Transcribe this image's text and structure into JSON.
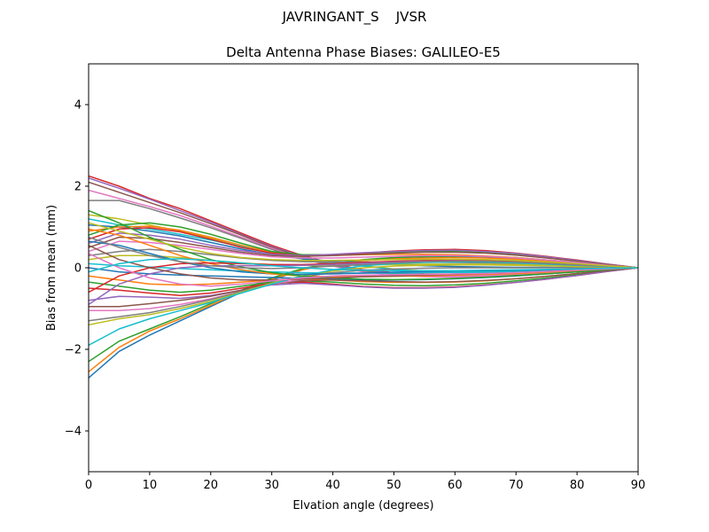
{
  "figure": {
    "suptitle": "JAVRINGANT_S    JVSR"
  },
  "chart_data": {
    "type": "line",
    "title": "Delta Antenna Phase Biases: GALILEO-E5",
    "xlabel": "Elvation angle (degrees)",
    "ylabel": "Bias from mean (mm)",
    "xlim": [
      0,
      90
    ],
    "ylim": [
      -5,
      5
    ],
    "xticks": [
      0,
      10,
      20,
      30,
      40,
      50,
      60,
      70,
      80,
      90
    ],
    "yticks": [
      -4,
      -2,
      0,
      2,
      4
    ],
    "xtick_labels": [
      "0",
      "10",
      "20",
      "30",
      "40",
      "50",
      "60",
      "70",
      "80",
      "90"
    ],
    "ytick_labels": [
      "−4",
      "−2",
      "0",
      "2",
      "4"
    ],
    "grid": false,
    "legend": "none",
    "palette": [
      "#1f77b4",
      "#ff7f0e",
      "#2ca02c",
      "#d62728",
      "#9467bd",
      "#8c564b",
      "#e377c2",
      "#7f7f7f",
      "#bcbd22",
      "#17becf"
    ],
    "x": [
      0,
      5,
      10,
      15,
      20,
      25,
      30,
      35,
      40,
      45,
      50,
      55,
      60,
      65,
      70,
      75,
      80,
      85,
      90
    ],
    "series": [
      {
        "values": [
          -2.7,
          -2.05,
          -1.65,
          -1.3,
          -0.95,
          -0.6,
          -0.3,
          -0.05,
          0.1,
          0.18,
          0.22,
          0.25,
          0.26,
          0.25,
          0.22,
          0.17,
          0.11,
          0.05,
          0.0
        ]
      },
      {
        "values": [
          -2.55,
          -1.95,
          -1.55,
          -1.25,
          -0.92,
          -0.58,
          -0.28,
          -0.05,
          0.1,
          0.18,
          0.22,
          0.24,
          0.25,
          0.24,
          0.21,
          0.16,
          0.11,
          0.05,
          0.0
        ]
      },
      {
        "values": [
          -2.3,
          -1.8,
          -1.5,
          -1.2,
          -0.88,
          -0.55,
          -0.25,
          -0.02,
          0.12,
          0.2,
          0.25,
          0.28,
          0.29,
          0.28,
          0.25,
          0.19,
          0.13,
          0.06,
          0.0
        ]
      },
      {
        "values": [
          2.25,
          2.0,
          1.7,
          1.45,
          1.15,
          0.85,
          0.55,
          0.3,
          0.1,
          -0.05,
          -0.12,
          -0.15,
          -0.16,
          -0.15,
          -0.13,
          -0.1,
          -0.07,
          -0.03,
          0.0
        ]
      },
      {
        "values": [
          2.2,
          1.95,
          1.68,
          1.4,
          1.12,
          0.82,
          0.52,
          0.28,
          0.08,
          -0.06,
          -0.13,
          -0.16,
          -0.17,
          -0.16,
          -0.14,
          -0.11,
          -0.07,
          -0.03,
          0.0
        ]
      },
      {
        "values": [
          2.1,
          1.85,
          1.6,
          1.35,
          1.08,
          0.8,
          0.5,
          0.25,
          0.06,
          -0.08,
          -0.15,
          -0.18,
          -0.19,
          -0.18,
          -0.15,
          -0.12,
          -0.08,
          -0.04,
          0.0
        ]
      },
      {
        "values": [
          1.9,
          1.7,
          1.5,
          1.28,
          1.02,
          0.75,
          0.48,
          0.22,
          0.04,
          -0.1,
          -0.18,
          -0.22,
          -0.23,
          -0.21,
          -0.18,
          -0.14,
          -0.09,
          -0.04,
          0.0
        ]
      },
      {
        "values": [
          1.65,
          1.65,
          1.45,
          1.22,
          0.98,
          0.72,
          0.45,
          0.22,
          0.06,
          -0.08,
          -0.15,
          -0.19,
          -0.2,
          -0.19,
          -0.16,
          -0.12,
          -0.08,
          -0.04,
          0.0
        ]
      },
      {
        "values": [
          1.3,
          1.2,
          1.05,
          0.9,
          0.72,
          0.55,
          0.38,
          0.24,
          0.14,
          0.05,
          -0.03,
          -0.08,
          -0.11,
          -0.12,
          -0.11,
          -0.09,
          -0.06,
          -0.03,
          0.0
        ]
      },
      {
        "values": [
          1.2,
          1.05,
          0.95,
          0.82,
          0.68,
          0.52,
          0.35,
          0.22,
          0.12,
          0.04,
          -0.04,
          -0.09,
          -0.12,
          -0.12,
          -0.11,
          -0.09,
          -0.06,
          -0.03,
          0.0
        ]
      },
      {
        "values": [
          1.05,
          1.0,
          0.9,
          0.78,
          0.62,
          0.46,
          0.32,
          0.22,
          0.16,
          0.12,
          0.08,
          0.05,
          0.03,
          0.02,
          0.01,
          0.01,
          0.0,
          0.0,
          0.0
        ]
      },
      {
        "values": [
          0.9,
          1.0,
          1.02,
          0.92,
          0.75,
          0.55,
          0.38,
          0.3,
          0.3,
          0.32,
          0.33,
          0.33,
          0.32,
          0.29,
          0.25,
          0.19,
          0.13,
          0.06,
          0.0
        ]
      },
      {
        "values": [
          0.8,
          1.05,
          1.1,
          1.0,
          0.82,
          0.6,
          0.4,
          0.32,
          0.32,
          0.35,
          0.38,
          0.4,
          0.4,
          0.37,
          0.32,
          0.25,
          0.17,
          0.08,
          0.0
        ]
      },
      {
        "values": [
          0.7,
          0.95,
          0.98,
          0.88,
          0.7,
          0.5,
          0.36,
          0.3,
          0.32,
          0.36,
          0.41,
          0.44,
          0.45,
          0.42,
          0.36,
          0.28,
          0.19,
          0.09,
          0.0
        ]
      },
      {
        "values": [
          0.6,
          0.85,
          0.8,
          0.7,
          0.55,
          0.42,
          0.33,
          0.3,
          0.33,
          0.37,
          0.4,
          0.42,
          0.43,
          0.4,
          0.35,
          0.27,
          0.18,
          0.09,
          0.0
        ]
      },
      {
        "values": [
          0.5,
          0.75,
          0.72,
          0.62,
          0.5,
          0.38,
          0.3,
          0.28,
          0.3,
          0.33,
          0.36,
          0.38,
          0.38,
          0.36,
          0.31,
          0.24,
          0.16,
          0.08,
          0.0
        ]
      },
      {
        "values": [
          0.4,
          0.65,
          0.62,
          0.55,
          0.45,
          0.35,
          0.27,
          0.24,
          0.24,
          0.26,
          0.28,
          0.3,
          0.3,
          0.28,
          0.24,
          0.19,
          0.13,
          0.06,
          0.0
        ]
      },
      {
        "values": [
          0.3,
          0.4,
          0.45,
          0.4,
          0.32,
          0.24,
          0.18,
          0.15,
          0.14,
          0.14,
          0.14,
          0.14,
          0.13,
          0.12,
          0.1,
          0.08,
          0.05,
          0.03,
          0.0
        ]
      },
      {
        "values": [
          0.2,
          0.3,
          0.3,
          0.25,
          0.18,
          0.12,
          0.08,
          0.06,
          0.06,
          0.07,
          0.08,
          0.09,
          0.09,
          0.09,
          0.08,
          0.06,
          0.04,
          0.02,
          0.0
        ]
      },
      {
        "values": [
          0.1,
          0.05,
          0.02,
          -0.02,
          -0.05,
          -0.08,
          -0.1,
          -0.12,
          -0.13,
          -0.13,
          -0.13,
          -0.12,
          -0.11,
          -0.1,
          -0.08,
          -0.06,
          -0.04,
          -0.02,
          0.0
        ]
      },
      {
        "values": [
          0.0,
          -0.1,
          -0.15,
          -0.18,
          -0.2,
          -0.22,
          -0.24,
          -0.26,
          -0.28,
          -0.3,
          -0.3,
          -0.29,
          -0.27,
          -0.24,
          -0.2,
          -0.15,
          -0.1,
          -0.05,
          0.0
        ]
      },
      {
        "values": [
          -0.2,
          -0.3,
          -0.4,
          -0.42,
          -0.4,
          -0.35,
          -0.3,
          -0.28,
          -0.3,
          -0.34,
          -0.36,
          -0.36,
          -0.35,
          -0.32,
          -0.27,
          -0.21,
          -0.14,
          -0.07,
          0.0
        ]
      },
      {
        "values": [
          -0.35,
          -0.45,
          -0.55,
          -0.6,
          -0.55,
          -0.45,
          -0.35,
          -0.32,
          -0.35,
          -0.4,
          -0.43,
          -0.44,
          -0.42,
          -0.38,
          -0.32,
          -0.25,
          -0.17,
          -0.08,
          0.0
        ]
      },
      {
        "values": [
          -0.5,
          -0.55,
          -0.62,
          -0.68,
          -0.62,
          -0.5,
          -0.38,
          -0.35,
          -0.4,
          -0.46,
          -0.49,
          -0.49,
          -0.47,
          -0.42,
          -0.36,
          -0.28,
          -0.19,
          -0.09,
          0.0
        ]
      },
      {
        "values": [
          -0.8,
          -0.7,
          -0.72,
          -0.75,
          -0.68,
          -0.55,
          -0.42,
          -0.38,
          -0.42,
          -0.47,
          -0.5,
          -0.5,
          -0.48,
          -0.43,
          -0.36,
          -0.28,
          -0.19,
          -0.09,
          0.0
        ]
      },
      {
        "values": [
          -0.95,
          -0.95,
          -0.88,
          -0.8,
          -0.7,
          -0.55,
          -0.4,
          -0.32,
          -0.3,
          -0.32,
          -0.34,
          -0.35,
          -0.34,
          -0.31,
          -0.27,
          -0.21,
          -0.14,
          -0.07,
          0.0
        ]
      },
      {
        "values": [
          -1.05,
          -1.05,
          -1.0,
          -0.9,
          -0.76,
          -0.58,
          -0.4,
          -0.28,
          -0.22,
          -0.2,
          -0.2,
          -0.2,
          -0.2,
          -0.19,
          -0.17,
          -0.13,
          -0.09,
          -0.04,
          0.0
        ]
      },
      {
        "values": [
          -1.3,
          -1.2,
          -1.1,
          -0.95,
          -0.78,
          -0.58,
          -0.38,
          -0.22,
          -0.12,
          -0.06,
          -0.03,
          -0.01,
          0.0,
          0.0,
          0.0,
          0.0,
          0.0,
          0.0,
          0.0
        ]
      },
      {
        "values": [
          -1.4,
          -1.25,
          -1.15,
          -1.0,
          -0.82,
          -0.6,
          -0.38,
          -0.2,
          -0.08,
          0.0,
          0.04,
          0.06,
          0.07,
          0.07,
          0.06,
          0.05,
          0.03,
          0.02,
          0.0
        ]
      },
      {
        "values": [
          -1.9,
          -1.5,
          -1.25,
          -1.05,
          -0.85,
          -0.62,
          -0.4,
          -0.2,
          -0.05,
          0.05,
          0.1,
          0.13,
          0.14,
          0.14,
          0.12,
          0.09,
          0.06,
          0.03,
          0.0
        ]
      },
      {
        "values": [
          0.65,
          0.55,
          0.35,
          0.15,
          0.0,
          -0.1,
          -0.15,
          -0.16,
          -0.15,
          -0.13,
          -0.11,
          -0.09,
          -0.08,
          -0.07,
          -0.06,
          -0.05,
          -0.03,
          -0.02,
          0.0
        ]
      },
      {
        "values": [
          0.95,
          0.8,
          0.55,
          0.3,
          0.1,
          -0.05,
          -0.15,
          -0.2,
          -0.22,
          -0.22,
          -0.21,
          -0.2,
          -0.18,
          -0.16,
          -0.14,
          -0.11,
          -0.07,
          -0.04,
          0.0
        ]
      },
      {
        "values": [
          1.4,
          1.1,
          0.75,
          0.45,
          0.2,
          0.02,
          -0.12,
          -0.2,
          -0.25,
          -0.28,
          -0.29,
          -0.28,
          -0.26,
          -0.23,
          -0.19,
          -0.15,
          -0.1,
          -0.05,
          0.0
        ]
      },
      {
        "values": [
          -0.6,
          -0.2,
          0.0,
          0.1,
          0.12,
          0.1,
          0.08,
          0.08,
          0.1,
          0.13,
          0.16,
          0.18,
          0.19,
          0.18,
          0.16,
          0.12,
          0.08,
          0.04,
          0.0
        ]
      },
      {
        "values": [
          -0.9,
          -0.4,
          -0.15,
          0.0,
          0.05,
          0.05,
          0.05,
          0.06,
          0.08,
          0.11,
          0.14,
          0.16,
          0.17,
          0.16,
          0.14,
          0.11,
          0.07,
          0.04,
          0.0
        ]
      },
      {
        "values": [
          0.55,
          0.2,
          0.0,
          -0.15,
          -0.25,
          -0.3,
          -0.3,
          -0.28,
          -0.25,
          -0.22,
          -0.2,
          -0.18,
          -0.16,
          -0.14,
          -0.12,
          -0.09,
          -0.06,
          -0.03,
          0.0
        ]
      },
      {
        "values": [
          0.35,
          0.0,
          -0.25,
          -0.4,
          -0.45,
          -0.4,
          -0.32,
          -0.25,
          -0.2,
          -0.18,
          -0.17,
          -0.16,
          -0.15,
          -0.14,
          -0.12,
          -0.09,
          -0.06,
          -0.03,
          0.0
        ]
      },
      {
        "values": [
          0.75,
          0.5,
          0.3,
          0.15,
          0.05,
          0.0,
          -0.02,
          0.0,
          0.04,
          0.08,
          0.12,
          0.15,
          0.16,
          0.16,
          0.14,
          0.11,
          0.07,
          0.04,
          0.0
        ]
      },
      {
        "values": [
          1.1,
          0.9,
          0.7,
          0.5,
          0.35,
          0.25,
          0.2,
          0.18,
          0.18,
          0.19,
          0.2,
          0.21,
          0.21,
          0.2,
          0.18,
          0.14,
          0.1,
          0.05,
          0.0
        ]
      },
      {
        "values": [
          -0.1,
          0.1,
          0.2,
          0.22,
          0.18,
          0.12,
          0.05,
          0.0,
          -0.04,
          -0.06,
          -0.07,
          -0.07,
          -0.07,
          -0.06,
          -0.05,
          -0.04,
          -0.03,
          -0.01,
          0.0
        ]
      }
    ]
  }
}
